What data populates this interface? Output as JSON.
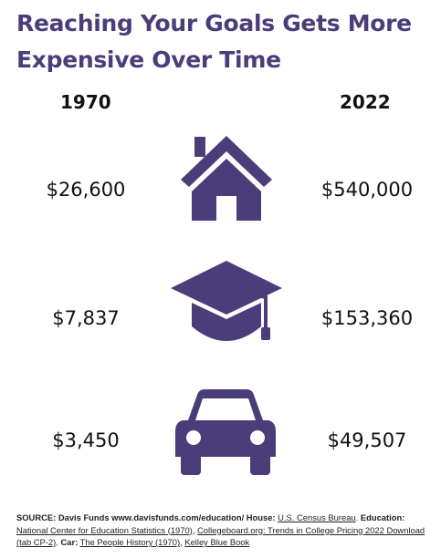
{
  "title": {
    "line1": "Reaching Your Goals Gets More",
    "line2": "Expensive Over Time"
  },
  "years": {
    "left": "1970",
    "right": "2022"
  },
  "rows": [
    {
      "icon": "house-icon",
      "left": "$26,600",
      "right": "$540,000"
    },
    {
      "icon": "graduation-cap-icon",
      "left": "$7,837",
      "right": "$153,360"
    },
    {
      "icon": "car-icon",
      "left": "$3,450",
      "right": "$49,507"
    }
  ],
  "source": {
    "label": "SOURCE: Davis Funds www.davisfunds.com/education/ House:",
    "house_link": "U.S. Census Bureau",
    "education_label": "Education:",
    "edu_link1": "National Center for Education Statistics (1970)",
    "edu_link2": "Collegeboard.org: Trends in College Pricing 2022 Download (tab CP-2)",
    "car_label": "Car:",
    "car_link1": "The People History (1970)",
    "car_link2": "Kelley Blue Book"
  },
  "colors": {
    "accent": "#4a3d7a",
    "text": "#111111"
  }
}
